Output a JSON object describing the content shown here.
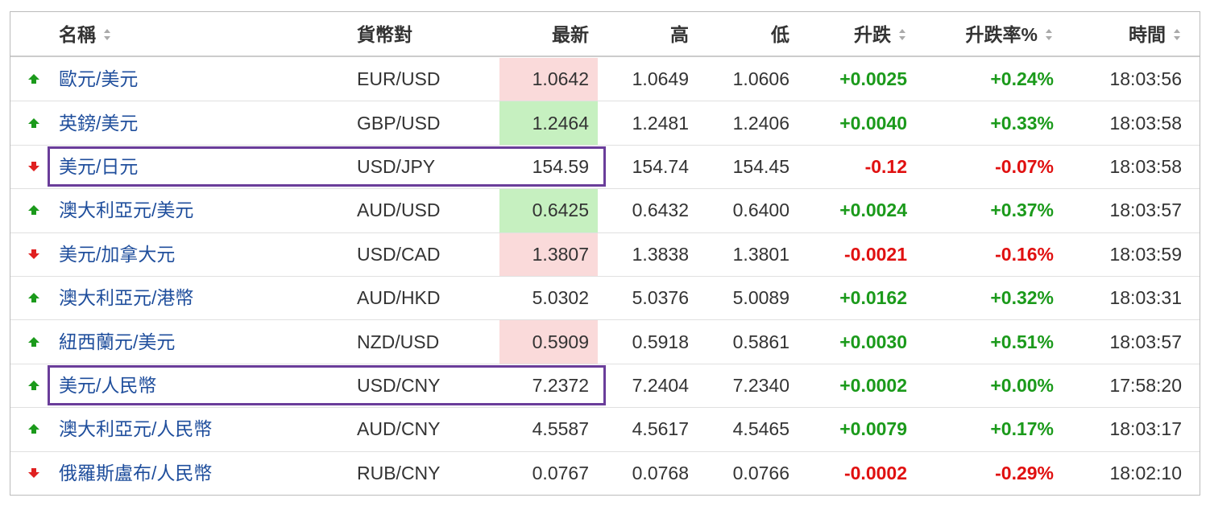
{
  "header": {
    "columns": [
      "名稱",
      "貨幣對",
      "最新",
      "高",
      "低",
      "升跌",
      "升跌率%",
      "時間"
    ]
  },
  "rows": [
    {
      "direction": "up",
      "name": "歐元/美元",
      "pair": "EUR/USD",
      "last": "1.0642",
      "last_highlight": "red",
      "high": "1.0649",
      "low": "1.0606",
      "change": "+0.0025",
      "change_pct": "+0.24%",
      "time": "18:03:56",
      "boxed": false
    },
    {
      "direction": "up",
      "name": "英鎊/美元",
      "pair": "GBP/USD",
      "last": "1.2464",
      "last_highlight": "green",
      "high": "1.2481",
      "low": "1.2406",
      "change": "+0.0040",
      "change_pct": "+0.33%",
      "time": "18:03:58",
      "boxed": false
    },
    {
      "direction": "down",
      "name": "美元/日元",
      "pair": "USD/JPY",
      "last": "154.59",
      "last_highlight": null,
      "high": "154.74",
      "low": "154.45",
      "change": "-0.12",
      "change_pct": "-0.07%",
      "time": "18:03:58",
      "boxed": true
    },
    {
      "direction": "up",
      "name": "澳大利亞元/美元",
      "pair": "AUD/USD",
      "last": "0.6425",
      "last_highlight": "green",
      "high": "0.6432",
      "low": "0.6400",
      "change": "+0.0024",
      "change_pct": "+0.37%",
      "time": "18:03:57",
      "boxed": false
    },
    {
      "direction": "down",
      "name": "美元/加拿大元",
      "pair": "USD/CAD",
      "last": "1.3807",
      "last_highlight": "red",
      "high": "1.3838",
      "low": "1.3801",
      "change": "-0.0021",
      "change_pct": "-0.16%",
      "time": "18:03:59",
      "boxed": false
    },
    {
      "direction": "up",
      "name": "澳大利亞元/港幣",
      "pair": "AUD/HKD",
      "last": "5.0302",
      "last_highlight": null,
      "high": "5.0376",
      "low": "5.0089",
      "change": "+0.0162",
      "change_pct": "+0.32%",
      "time": "18:03:31",
      "boxed": false
    },
    {
      "direction": "up",
      "name": "紐西蘭元/美元",
      "pair": "NZD/USD",
      "last": "0.5909",
      "last_highlight": "red",
      "high": "0.5918",
      "low": "0.5861",
      "change": "+0.0030",
      "change_pct": "+0.51%",
      "time": "18:03:57",
      "boxed": false
    },
    {
      "direction": "up",
      "name": "美元/人民幣",
      "pair": "USD/CNY",
      "last": "7.2372",
      "last_highlight": null,
      "high": "7.2404",
      "low": "7.2340",
      "change": "+0.0002",
      "change_pct": "+0.00%",
      "time": "17:58:20",
      "boxed": true
    },
    {
      "direction": "up",
      "name": "澳大利亞元/人民幣",
      "pair": "AUD/CNY",
      "last": "4.5587",
      "last_highlight": null,
      "high": "4.5617",
      "low": "4.5465",
      "change": "+0.0079",
      "change_pct": "+0.17%",
      "time": "18:03:17",
      "boxed": false
    },
    {
      "direction": "down",
      "name": "俄羅斯盧布/人民幣",
      "pair": "RUB/CNY",
      "last": "0.0767",
      "last_highlight": null,
      "high": "0.0768",
      "low": "0.0766",
      "change": "-0.0002",
      "change_pct": "-0.29%",
      "time": "18:02:10",
      "boxed": false
    }
  ]
}
